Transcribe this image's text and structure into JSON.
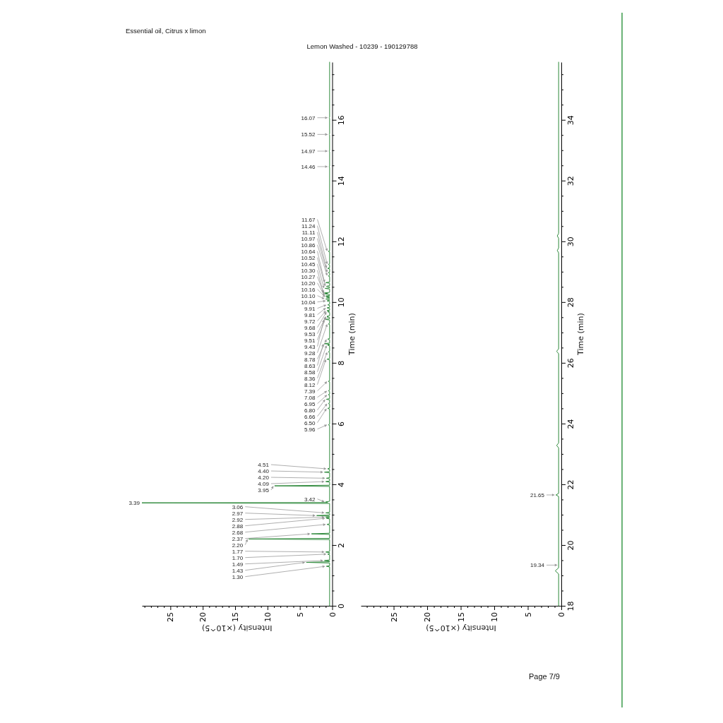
{
  "chart_data": [
    {
      "type": "line",
      "title": "Essential oil, Citrus x limon",
      "subtitle": "Lemon Washed - 10239 - 190129788",
      "xlabel": "Intensity (×10^5)",
      "ylabel": "Time (min)",
      "color": "#2f8a3c",
      "xlim": [
        29.4,
        0
      ],
      "ylim": [
        0,
        17.9
      ],
      "xticks": [
        0,
        {
          "value": 1,
          "label": null
        },
        {
          "value": 2,
          "label": null
        },
        {
          "value": 3,
          "label": null
        },
        {
          "value": 4,
          "label": null
        },
        5,
        {
          "value": 6,
          "label": null
        },
        {
          "value": 7,
          "label": null
        },
        {
          "value": 8,
          "label": null
        },
        {
          "value": 9,
          "label": null
        },
        10,
        {
          "value": 11,
          "label": null
        },
        {
          "value": 12,
          "label": null
        },
        {
          "value": 13,
          "label": null
        },
        {
          "value": 14,
          "label": null
        },
        15,
        {
          "value": 16,
          "label": null
        },
        {
          "value": 17,
          "label": null
        },
        {
          "value": 18,
          "label": null
        },
        {
          "value": 19,
          "label": null
        },
        20,
        {
          "value": 21,
          "label": null
        },
        {
          "value": 22,
          "label": null
        },
        {
          "value": 23,
          "label": null
        },
        {
          "value": 24,
          "label": null
        },
        25,
        {
          "value": 26,
          "label": null
        },
        {
          "value": 27,
          "label": null
        },
        {
          "value": 28,
          "label": null
        },
        {
          "value": 29,
          "label": null
        }
      ],
      "yticks": [
        0,
        {
          "value": 0.5,
          "label": null
        },
        {
          "value": 1,
          "label": null
        },
        {
          "value": 1.5,
          "label": null
        },
        2,
        {
          "value": 2.5,
          "label": null
        },
        {
          "value": 3,
          "label": null
        },
        {
          "value": 3.5,
          "label": null
        },
        4,
        {
          "value": 4.5,
          "label": null
        },
        {
          "value": 5,
          "label": null
        },
        {
          "value": 5.5,
          "label": null
        },
        6,
        {
          "value": 6.5,
          "label": null
        },
        {
          "value": 7,
          "label": null
        },
        {
          "value": 7.5,
          "label": null
        },
        8,
        {
          "value": 8.5,
          "label": null
        },
        {
          "value": 9,
          "label": null
        },
        {
          "value": 9.5,
          "label": null
        },
        10,
        {
          "value": 10.5,
          "label": null
        },
        {
          "value": 11,
          "label": null
        },
        {
          "value": 11.5,
          "label": null
        },
        12,
        {
          "value": 12.5,
          "label": null
        },
        {
          "value": 13,
          "label": null
        },
        {
          "value": 13.5,
          "label": null
        },
        14,
        {
          "value": 14.5,
          "label": null
        },
        {
          "value": 15,
          "label": null
        },
        {
          "value": 15.5,
          "label": null
        },
        16,
        {
          "value": 16.5,
          "label": null
        },
        {
          "value": 17,
          "label": null
        },
        {
          "value": 17.5,
          "label": null
        }
      ],
      "x": [
        0.4,
        0.4,
        0.9,
        0.4,
        0.4,
        4.0,
        0.4,
        0.4,
        1.2,
        0.4,
        0.4,
        0.7,
        0.4,
        0.4,
        1.0,
        0.4,
        0.4,
        12.9,
        0.4,
        0.4,
        3.2,
        0.4,
        0.4,
        0.8,
        0.4,
        0.4,
        0.9,
        0.4,
        1.0,
        0.4,
        0.4,
        2.4,
        0.4,
        0.4,
        1.0,
        0.4,
        0.4,
        29.4,
        0.7,
        1.0,
        0.4,
        0.4,
        8.9,
        0.4,
        0.4,
        1.0,
        0.4,
        0.4,
        0.9,
        0.4,
        0.4,
        1.2,
        0.4,
        0.4,
        0.7,
        0.4,
        0.4,
        0.6,
        0.4,
        0.4,
        0.7,
        0.4,
        0.4,
        0.6,
        0.4,
        0.4,
        0.9,
        0.4,
        0.4,
        0.6,
        0.4,
        0.4,
        0.6,
        0.4,
        0.4,
        0.6,
        0.4,
        0.4,
        0.8,
        0.4,
        0.4,
        0.6,
        0.4,
        0.4,
        0.7,
        0.4,
        0.4,
        1.2,
        0.4,
        0.4,
        0.7,
        0.4,
        0.4,
        0.6,
        0.4,
        0.4,
        1.1,
        0.4,
        0.4,
        0.8,
        0.6,
        0.8,
        0.4,
        0.4,
        0.7,
        0.4,
        0.8,
        0.4,
        0.4,
        0.8,
        0.4,
        0.4,
        0.7,
        0.4,
        0.4,
        0.8,
        0.4,
        0.4,
        1.0,
        0.4,
        0.4,
        0.9,
        0.4,
        1.0,
        0.4,
        0.4,
        1.1,
        0.7,
        1.2,
        0.4,
        0.4,
        1.1,
        0.4,
        0.4,
        0.9,
        0.4,
        0.4,
        1.0,
        0.4,
        0.4,
        0.6,
        0.4,
        0.4,
        0.6,
        0.4,
        0.4,
        0.7,
        0.4,
        0.4,
        0.6,
        0.4,
        0.4,
        0.6,
        0.4,
        0.4,
        0.5,
        0.4,
        0.4,
        0.5,
        0.4,
        0.4,
        0.5,
        0.4,
        0.4,
        0.5,
        0.4,
        0.4
      ],
      "values": [
        0,
        1.28,
        1.3,
        1.32,
        1.41,
        1.43,
        1.45,
        1.47,
        1.49,
        1.51,
        1.68,
        1.7,
        1.72,
        1.75,
        1.77,
        1.79,
        2.18,
        2.2,
        2.22,
        2.35,
        2.37,
        2.39,
        2.66,
        2.68,
        2.7,
        2.86,
        2.88,
        2.9,
        2.92,
        2.94,
        2.95,
        2.97,
        2.99,
        3.04,
        3.06,
        3.08,
        3.37,
        3.39,
        3.4,
        3.42,
        3.44,
        3.93,
        3.95,
        3.97,
        4.07,
        4.09,
        4.11,
        4.18,
        4.2,
        4.22,
        4.38,
        4.4,
        4.42,
        4.49,
        4.51,
        4.53,
        5.94,
        5.96,
        5.98,
        6.48,
        6.5,
        6.52,
        6.64,
        6.66,
        6.68,
        6.78,
        6.8,
        6.82,
        6.93,
        6.95,
        6.97,
        7.06,
        7.08,
        7.1,
        7.37,
        7.39,
        7.41,
        8.1,
        8.12,
        8.14,
        8.34,
        8.36,
        8.38,
        8.56,
        8.58,
        8.6,
        8.61,
        8.63,
        8.65,
        8.76,
        8.78,
        8.8,
        9.26,
        9.28,
        9.3,
        9.41,
        9.43,
        9.45,
        9.49,
        9.51,
        9.52,
        9.53,
        9.55,
        9.66,
        9.68,
        9.7,
        9.72,
        9.74,
        9.79,
        9.81,
        9.83,
        9.89,
        9.91,
        9.93,
        10.02,
        10.04,
        10.06,
        10.08,
        10.1,
        10.12,
        10.14,
        10.16,
        10.18,
        10.2,
        10.22,
        10.25,
        10.27,
        10.28,
        10.3,
        10.32,
        10.43,
        10.45,
        10.47,
        10.5,
        10.52,
        10.54,
        10.62,
        10.64,
        10.66,
        10.84,
        10.86,
        10.88,
        10.95,
        10.97,
        10.99,
        11.09,
        11.11,
        11.13,
        11.22,
        11.24,
        11.26,
        11.65,
        11.67,
        11.69,
        14.44,
        14.46,
        14.48,
        14.95,
        14.97,
        14.99,
        15.5,
        15.52,
        15.54,
        16.05,
        16.07,
        16.09,
        17.9
      ],
      "annotations": [
        {
          "text": "1.30",
          "x": 0.9,
          "y": 1.3
        },
        {
          "text": "1.43",
          "x": 4.0,
          "y": 1.43
        },
        {
          "text": "1.49",
          "x": 1.2,
          "y": 1.49
        },
        {
          "text": "1.70",
          "x": 0.7,
          "y": 1.7
        },
        {
          "text": "1.77",
          "x": 1.0,
          "y": 1.77
        },
        {
          "text": "2.20",
          "x": 12.9,
          "y": 2.2
        },
        {
          "text": "2.37",
          "x": 3.2,
          "y": 2.37
        },
        {
          "text": "2.68",
          "x": 0.8,
          "y": 2.68
        },
        {
          "text": "2.88",
          "x": 0.9,
          "y": 2.88
        },
        {
          "text": "2.92",
          "x": 1.0,
          "y": 2.92
        },
        {
          "text": "2.97",
          "x": 2.4,
          "y": 2.97
        },
        {
          "text": "3.06",
          "x": 1.0,
          "y": 3.06
        },
        {
          "text": "3.39",
          "x": 29.4,
          "y": 3.39
        },
        {
          "text": "3.42",
          "x": 1.0,
          "y": 3.42
        },
        {
          "text": "3.95",
          "x": 8.9,
          "y": 3.95
        },
        {
          "text": "4.09",
          "x": 1.0,
          "y": 4.09
        },
        {
          "text": "4.20",
          "x": 0.9,
          "y": 4.2
        },
        {
          "text": "4.40",
          "x": 1.2,
          "y": 4.4
        },
        {
          "text": "4.51",
          "x": 0.7,
          "y": 4.51
        },
        {
          "text": "5.96",
          "x": 0.6,
          "y": 5.96
        },
        {
          "text": "6.50",
          "x": 0.7,
          "y": 6.5
        },
        {
          "text": "6.66",
          "x": 0.6,
          "y": 6.66
        },
        {
          "text": "6.80",
          "x": 0.9,
          "y": 6.8
        },
        {
          "text": "6.95",
          "x": 0.6,
          "y": 6.95
        },
        {
          "text": "7.08",
          "x": 0.6,
          "y": 7.08
        },
        {
          "text": "7.39",
          "x": 0.6,
          "y": 7.39
        },
        {
          "text": "8.12",
          "x": 0.8,
          "y": 8.12
        },
        {
          "text": "8.36",
          "x": 0.6,
          "y": 8.36
        },
        {
          "text": "8.58",
          "x": 0.7,
          "y": 8.58
        },
        {
          "text": "8.63",
          "x": 1.2,
          "y": 8.63
        },
        {
          "text": "8.78",
          "x": 0.7,
          "y": 8.78
        },
        {
          "text": "9.28",
          "x": 0.6,
          "y": 9.28
        },
        {
          "text": "9.43",
          "x": 1.1,
          "y": 9.43
        },
        {
          "text": "9.51",
          "x": 0.8,
          "y": 9.51
        },
        {
          "text": "9.53",
          "x": 0.8,
          "y": 9.53
        },
        {
          "text": "9.68",
          "x": 0.7,
          "y": 9.68
        },
        {
          "text": "9.72",
          "x": 0.8,
          "y": 9.72
        },
        {
          "text": "9.81",
          "x": 0.8,
          "y": 9.81
        },
        {
          "text": "9.91",
          "x": 0.7,
          "y": 9.91
        },
        {
          "text": "10.04",
          "x": 0.8,
          "y": 10.04
        },
        {
          "text": "10.10",
          "x": 1.0,
          "y": 10.1
        },
        {
          "text": "10.16",
          "x": 0.9,
          "y": 10.16
        },
        {
          "text": "10.20",
          "x": 1.0,
          "y": 10.2
        },
        {
          "text": "10.27",
          "x": 1.1,
          "y": 10.27
        },
        {
          "text": "10.30",
          "x": 1.2,
          "y": 10.3
        },
        {
          "text": "10.45",
          "x": 1.1,
          "y": 10.45
        },
        {
          "text": "10.52",
          "x": 0.9,
          "y": 10.52
        },
        {
          "text": "10.64",
          "x": 1.0,
          "y": 10.64
        },
        {
          "text": "10.86",
          "x": 0.6,
          "y": 10.86
        },
        {
          "text": "10.97",
          "x": 0.6,
          "y": 10.97
        },
        {
          "text": "11.11",
          "x": 0.7,
          "y": 11.11
        },
        {
          "text": "11.24",
          "x": 0.6,
          "y": 11.24
        },
        {
          "text": "11.67",
          "x": 0.6,
          "y": 11.67
        },
        {
          "text": "14.46",
          "x": 0.5,
          "y": 14.46
        },
        {
          "text": "14.97",
          "x": 0.5,
          "y": 14.97
        },
        {
          "text": "15.52",
          "x": 0.5,
          "y": 15.52
        },
        {
          "text": "16.07",
          "x": 0.5,
          "y": 16.07
        }
      ]
    },
    {
      "type": "line",
      "xlabel": "Intensity (×10^5)",
      "ylabel": "Time (min)",
      "color": "#2f8a3c",
      "xlim": [
        29.9,
        0
      ],
      "ylim": [
        18,
        35.9
      ],
      "xticks": [
        0,
        {
          "value": 1,
          "label": null
        },
        {
          "value": 2,
          "label": null
        },
        {
          "value": 3,
          "label": null
        },
        {
          "value": 4,
          "label": null
        },
        5,
        {
          "value": 6,
          "label": null
        },
        {
          "value": 7,
          "label": null
        },
        {
          "value": 8,
          "label": null
        },
        {
          "value": 9,
          "label": null
        },
        10,
        {
          "value": 11,
          "label": null
        },
        {
          "value": 12,
          "label": null
        },
        {
          "value": 13,
          "label": null
        },
        {
          "value": 14,
          "label": null
        },
        15,
        {
          "value": 16,
          "label": null
        },
        {
          "value": 17,
          "label": null
        },
        {
          "value": 18,
          "label": null
        },
        {
          "value": 19,
          "label": null
        },
        20,
        {
          "value": 21,
          "label": null
        },
        {
          "value": 22,
          "label": null
        },
        {
          "value": 23,
          "label": null
        },
        {
          "value": 24,
          "label": null
        },
        25,
        {
          "value": 26,
          "label": null
        },
        {
          "value": 27,
          "label": null
        },
        {
          "value": 28,
          "label": null
        },
        {
          "value": 29,
          "label": null
        }
      ],
      "yticks": [
        18,
        {
          "value": 18.5,
          "label": null
        },
        {
          "value": 19,
          "label": null
        },
        {
          "value": 19.5,
          "label": null
        },
        20,
        {
          "value": 20.5,
          "label": null
        },
        {
          "value": 21,
          "label": null
        },
        {
          "value": 21.5,
          "label": null
        },
        22,
        {
          "value": 22.5,
          "label": null
        },
        {
          "value": 23,
          "label": null
        },
        {
          "value": 23.5,
          "label": null
        },
        24,
        {
          "value": 24.5,
          "label": null
        },
        {
          "value": 25,
          "label": null
        },
        {
          "value": 25.5,
          "label": null
        },
        26,
        {
          "value": 26.5,
          "label": null
        },
        {
          "value": 27,
          "label": null
        },
        {
          "value": 27.5,
          "label": null
        },
        28,
        {
          "value": 28.5,
          "label": null
        },
        {
          "value": 29,
          "label": null
        },
        {
          "value": 29.5,
          "label": null
        },
        30,
        {
          "value": 30.5,
          "label": null
        },
        {
          "value": 31,
          "label": null
        },
        {
          "value": 31.5,
          "label": null
        },
        32,
        {
          "value": 32.5,
          "label": null
        },
        {
          "value": 33,
          "label": null
        },
        {
          "value": 33.5,
          "label": null
        },
        34,
        {
          "value": 34.5,
          "label": null
        },
        {
          "value": 35,
          "label": null
        },
        {
          "value": 35.5,
          "label": null
        }
      ],
      "x": [
        0.4,
        0.4,
        0.9,
        0.4,
        0.4,
        0.8,
        0.4,
        0.4,
        0.7,
        0.4,
        0.4,
        0.7,
        0.4,
        0.4,
        0.6,
        0.4,
        0.4,
        0.6,
        0.4,
        0.4
      ],
      "values": [
        18,
        19.05,
        19.15,
        19.25,
        21.6,
        21.65,
        21.7,
        23.2,
        23.28,
        23.36,
        26.3,
        26.38,
        26.46,
        29.62,
        29.7,
        29.78,
        30.1,
        30.18,
        30.26,
        35.9
      ],
      "annotations": [
        {
          "text": "19.34",
          "x": 0.4,
          "y": 19.34
        },
        {
          "text": "21.65",
          "x": 0.8,
          "y": 21.65
        },
        "Page 7/9"
      ]
    }
  ]
}
